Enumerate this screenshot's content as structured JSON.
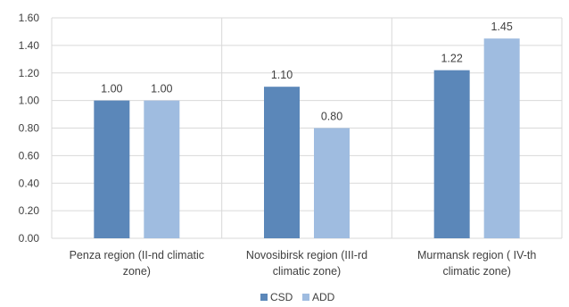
{
  "chart_data": {
    "type": "bar",
    "categories": [
      [
        "Penza region (II-nd climatic",
        "zone)"
      ],
      [
        "Novosibirsk region (III-rd",
        "climatic zone)"
      ],
      [
        "Murmansk region ( IV-th",
        "climatic zone)"
      ]
    ],
    "series": [
      {
        "name": "CSD",
        "values": [
          1.0,
          1.1,
          1.22
        ],
        "labels": [
          "1.00",
          "1.10",
          "1.22"
        ]
      },
      {
        "name": "ADD",
        "values": [
          1.0,
          0.8,
          1.45
        ],
        "labels": [
          "1.00",
          "0.80",
          "1.45"
        ]
      }
    ],
    "ylim": [
      0,
      1.6
    ],
    "yticks": [
      "0.00",
      "0.20",
      "0.40",
      "0.60",
      "0.80",
      "1.00",
      "1.20",
      "1.40",
      "1.60"
    ],
    "grid": true,
    "legend_position": "bottom",
    "title": "",
    "xlabel": "",
    "ylabel": ""
  },
  "colors": {
    "CSD": "#5b87b9",
    "ADD": "#9fbce0",
    "grid": "#d9d9d9",
    "text": "#404040"
  }
}
